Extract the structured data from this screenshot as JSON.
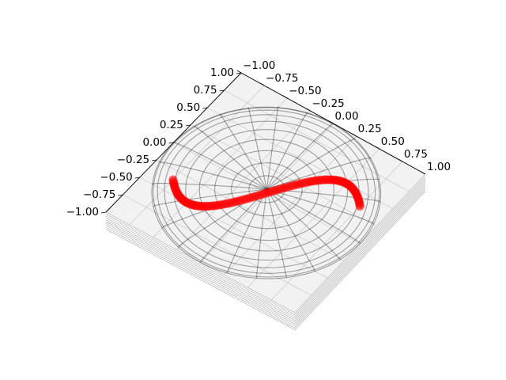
{
  "chart_data": {
    "type": "scatter",
    "projection": "3d",
    "title": "",
    "xlabel": "",
    "ylabel": "",
    "zlabel": "",
    "xlim": [
      -1.0,
      1.0
    ],
    "ylim": [
      -1.0,
      1.0
    ],
    "zlim": [
      -1.0,
      1.0
    ],
    "grid": true,
    "x_ticks": [
      "−1.00",
      "−0.75",
      "−0.50",
      "−0.25",
      "0.00",
      "0.25",
      "0.50",
      "0.75",
      "1.00"
    ],
    "y_ticks": [
      "1.00",
      "0.75",
      "0.50",
      "0.25",
      "0.00",
      "−0.25",
      "−0.50",
      "−0.75",
      "−1.00"
    ],
    "surface": {
      "kind": "wireframe",
      "shape": "hemisphere",
      "radius": 1.0,
      "color": "#000000"
    },
    "series": [
      {
        "kind": "scatter",
        "color": "#ff0000",
        "description_values": "points along y = 0.5·sin(π·x) for x from −0.75 to 0.75, z = 0",
        "x_start": -0.75,
        "x_end": 0.75,
        "amplitude": 0.5,
        "n_points": 120
      }
    ],
    "colors": {
      "pane": "#f2f2f2",
      "pane_edge": "#bdbdbd",
      "grid": "#c8c8c8",
      "axis": "#000000",
      "wire": "#000000",
      "marker": "#ff0000"
    }
  }
}
